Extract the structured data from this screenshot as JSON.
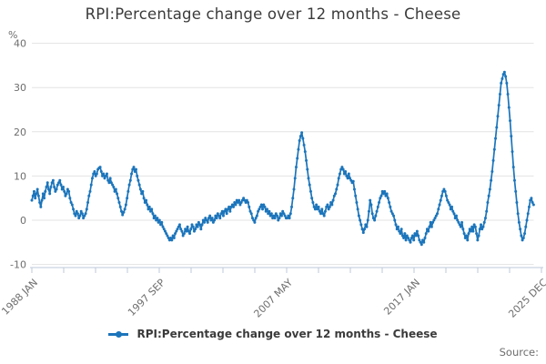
{
  "page": {
    "title": "RPI:Percentage change over 12 months - Cheese",
    "y_unit": "%",
    "source_label": "Source:"
  },
  "legend": {
    "label": "RPI:Percentage change over 12 months - Cheese"
  },
  "chart_data": {
    "type": "line",
    "title": "RPI:Percentage change over 12 months - Cheese",
    "y_unit": "%",
    "ylim": [
      -10,
      40
    ],
    "y_ticks": [
      40,
      30,
      20,
      10,
      0,
      -10
    ],
    "grid": true,
    "legend_position": "bottom",
    "x_tick_labels": [
      "1988 JAN",
      "1997 SEP",
      "2007 MAY",
      "2017 JAN",
      "2025 DEC"
    ],
    "x_axis_total_months": 455,
    "x_minor_ticks_between_labels": 3,
    "colors": {
      "line": "#1c75bb",
      "grid": "#e3e3e3",
      "axis": "#bcc8da",
      "tick_text": "#6e6e6e",
      "title_text": "#3b3b3b"
    },
    "series": [
      {
        "name": "RPI:Percentage change over 12 months - Cheese",
        "start": "1988 JAN",
        "end": "2025 MAY",
        "frequency": "monthly",
        "values": [
          4.5,
          5.5,
          6.5,
          5,
          6,
          7,
          5.5,
          4,
          3,
          4.5,
          6,
          5,
          6.5,
          7.5,
          8.5,
          7,
          6,
          7.5,
          8.5,
          9,
          7.5,
          6.5,
          7,
          8,
          8.5,
          9,
          8,
          7,
          7.5,
          6.5,
          5.5,
          6,
          7,
          6.5,
          5,
          4,
          3.5,
          2.5,
          1.5,
          1,
          2,
          1.5,
          0.5,
          1,
          2,
          1.5,
          0.5,
          1,
          1.5,
          2.5,
          4,
          5.5,
          6.5,
          8,
          9.5,
          10.5,
          11,
          10,
          10.5,
          11.5,
          11.8,
          12,
          11,
          10,
          10.5,
          9.5,
          10,
          10.5,
          9,
          8.5,
          9.5,
          8.5,
          8,
          7.5,
          6.5,
          7,
          6,
          5,
          4,
          3,
          2,
          1.2,
          1.8,
          2.5,
          3.5,
          5,
          6.5,
          8,
          9,
          10.5,
          11.5,
          12,
          11,
          11.5,
          10,
          9,
          8,
          7,
          6,
          6.5,
          5,
          4,
          4.5,
          3.5,
          2.5,
          3,
          2,
          2.5,
          1.5,
          0.5,
          1,
          0,
          0.5,
          -0.5,
          0,
          -1,
          -0.5,
          -1.5,
          -2,
          -2.5,
          -3,
          -3.5,
          -4,
          -4.5,
          -4,
          -4.5,
          -3.5,
          -4,
          -3,
          -2.5,
          -2,
          -1.5,
          -1,
          -2,
          -2.5,
          -3.5,
          -3,
          -2,
          -2.5,
          -1.5,
          -2.5,
          -3,
          -2,
          -1,
          -1.5,
          -2.5,
          -2,
          -1,
          -1.5,
          -0.5,
          -1,
          -2,
          -1,
          0,
          -0.5,
          0.5,
          0,
          -0.5,
          0.5,
          1,
          0,
          0.5,
          -0.5,
          0,
          1,
          0.5,
          1.5,
          1,
          0.5,
          1.5,
          2,
          1,
          2,
          2.5,
          1.5,
          2.5,
          3,
          2,
          3,
          3.5,
          3,
          4,
          3.5,
          4.5,
          4,
          4.5,
          3.5,
          4,
          4.5,
          5,
          4.5,
          4,
          4.5,
          4,
          3,
          2,
          1.5,
          0.5,
          0,
          -0.5,
          0.5,
          1,
          2,
          2.5,
          3,
          3.5,
          2.5,
          3.5,
          3,
          2,
          2.5,
          1.5,
          2,
          1,
          1.5,
          0.5,
          1,
          0.5,
          1.5,
          1,
          0,
          0.5,
          1.5,
          1,
          2,
          1.5,
          1,
          0.5,
          0.5,
          1,
          0.5,
          1.5,
          3,
          5,
          7,
          9.5,
          12,
          14,
          16,
          18,
          19,
          19.8,
          18.5,
          17,
          15.5,
          13.5,
          11.5,
          9.5,
          8,
          6.5,
          5,
          4,
          3,
          2.5,
          3.5,
          2.5,
          3,
          2,
          1.5,
          2.5,
          1.5,
          1,
          2,
          3,
          3.5,
          2.5,
          3,
          4,
          3.5,
          4.5,
          5.5,
          6,
          7,
          8,
          9.5,
          10.5,
          11.5,
          12,
          11.5,
          10.5,
          11,
          10,
          9.5,
          10.5,
          9.5,
          9,
          8.5,
          8.8,
          7,
          5.5,
          4,
          2.5,
          1,
          0,
          -1,
          -2,
          -2.8,
          -2,
          -1,
          -1.5,
          0,
          2,
          4.5,
          3.5,
          1.5,
          0.5,
          0,
          1,
          2,
          3,
          4,
          5,
          5.5,
          6.5,
          6,
          6.5,
          5.5,
          6,
          5,
          4,
          3,
          2,
          1.5,
          1,
          0,
          -1,
          -2,
          -1.5,
          -2.5,
          -3,
          -2,
          -3.5,
          -4,
          -3,
          -4.5,
          -3.5,
          -4,
          -4.5,
          -5,
          -4,
          -3.5,
          -4.5,
          -3,
          -3.5,
          -2.5,
          -3.5,
          -4.5,
          -5,
          -5.5,
          -4.5,
          -5,
          -4,
          -3,
          -2,
          -2.5,
          -1.5,
          -0.5,
          -1.5,
          -0.5,
          0,
          0.5,
          1,
          1.5,
          2.5,
          3.5,
          4.5,
          5.5,
          6.5,
          7,
          6.5,
          5.5,
          4.5,
          4,
          3.5,
          2.5,
          3,
          2,
          1.5,
          0.5,
          1,
          0,
          -0.5,
          -1,
          -1.5,
          -0.5,
          -2,
          -3,
          -4,
          -3.5,
          -4.5,
          -3,
          -2,
          -2.5,
          -1.5,
          -2.5,
          -1,
          -1.5,
          -3,
          -4.5,
          -3.5,
          -2,
          -1,
          -2,
          -1.5,
          -0.5,
          0.5,
          2,
          4,
          5.5,
          7,
          9,
          11,
          13.5,
          16,
          18.5,
          21,
          23.5,
          26,
          28.5,
          31,
          32,
          33,
          33.5,
          32.5,
          31,
          28.5,
          25.5,
          22.5,
          19,
          15.5,
          12,
          9,
          6.5,
          4,
          1.5,
          -0.5,
          -2,
          -3.5,
          -4.5,
          -4,
          -3,
          -1.5,
          0,
          1.5,
          3,
          4.5,
          5,
          4,
          3.5
        ]
      }
    ]
  }
}
